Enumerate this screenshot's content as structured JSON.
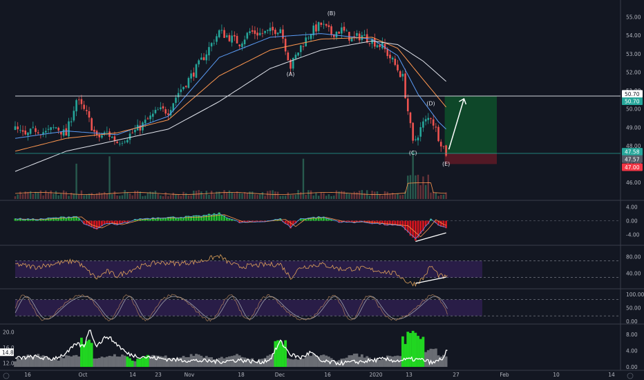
{
  "chart_data": {
    "type": "candlestick",
    "x_ticks": [
      "16",
      "Oct",
      "14",
      "23",
      "Nov",
      "18",
      "Dec",
      "16",
      "2020",
      "13",
      "27",
      "Feb",
      "10",
      "14"
    ],
    "price": {
      "y_ticks": [
        "55.00",
        "54.00",
        "53.00",
        "52.00",
        "51.00",
        "50.00",
        "49.00",
        "48.00",
        "47.00",
        "46.00"
      ],
      "ylim": [
        45.1,
        55.4
      ],
      "series": [
        {
          "t": 0,
          "v": 48.9
        },
        {
          "t": 4,
          "v": 48.5
        },
        {
          "t": 8,
          "v": 48.9
        },
        {
          "t": 12,
          "v": 48.7
        },
        {
          "t": 16,
          "v": 49.0
        },
        {
          "t": 20,
          "v": 48.6
        },
        {
          "t": 24,
          "v": 50.5
        },
        {
          "t": 28,
          "v": 49.7
        },
        {
          "t": 32,
          "v": 48.4
        },
        {
          "t": 36,
          "v": 48.7
        },
        {
          "t": 40,
          "v": 48.2
        },
        {
          "t": 44,
          "v": 48.5
        },
        {
          "t": 48,
          "v": 48.9
        },
        {
          "t": 52,
          "v": 49.4
        },
        {
          "t": 56,
          "v": 49.9
        },
        {
          "t": 60,
          "v": 49.9
        },
        {
          "t": 64,
          "v": 50.9
        },
        {
          "t": 68,
          "v": 51.6
        },
        {
          "t": 72,
          "v": 52.4
        },
        {
          "t": 76,
          "v": 53.3
        },
        {
          "t": 80,
          "v": 54.2
        },
        {
          "t": 84,
          "v": 53.9
        },
        {
          "t": 88,
          "v": 53.6
        },
        {
          "t": 92,
          "v": 54.2
        },
        {
          "t": 96,
          "v": 54.1
        },
        {
          "t": 100,
          "v": 54.2
        },
        {
          "t": 104,
          "v": 54.4
        },
        {
          "t": 108,
          "v": 52.3
        },
        {
          "t": 112,
          "v": 53.4
        },
        {
          "t": 116,
          "v": 54.2
        },
        {
          "t": 120,
          "v": 54.6
        },
        {
          "t": 124,
          "v": 54.1
        },
        {
          "t": 128,
          "v": 54.3
        },
        {
          "t": 132,
          "v": 53.8
        },
        {
          "t": 136,
          "v": 54.0
        },
        {
          "t": 140,
          "v": 53.7
        },
        {
          "t": 144,
          "v": 53.4
        },
        {
          "t": 148,
          "v": 52.6
        },
        {
          "t": 152,
          "v": 51.7
        },
        {
          "t": 156,
          "v": 48.1
        },
        {
          "t": 160,
          "v": 49.2
        },
        {
          "t": 163,
          "v": 49.6
        },
        {
          "t": 166,
          "v": 48.5
        },
        {
          "t": 169,
          "v": 47.6
        }
      ],
      "moving_averages": [
        {
          "color": "#5b9cf6",
          "points": [
            [
              0,
              48.4
            ],
            [
              20,
              48.8
            ],
            [
              40,
              48.6
            ],
            [
              60,
              49.6
            ],
            [
              80,
              52.8
            ],
            [
              100,
              53.9
            ],
            [
              120,
              54.1
            ],
            [
              140,
              53.8
            ],
            [
              150,
              52.9
            ],
            [
              158,
              50.8
            ],
            [
              166,
              49.3
            ],
            [
              169,
              48.9
            ]
          ]
        },
        {
          "color": "#ff9850",
          "points": [
            [
              0,
              47.7
            ],
            [
              20,
              48.4
            ],
            [
              40,
              48.7
            ],
            [
              60,
              49.4
            ],
            [
              80,
              51.8
            ],
            [
              100,
              53.2
            ],
            [
              120,
              53.8
            ],
            [
              140,
              53.9
            ],
            [
              150,
              53.3
            ],
            [
              160,
              51.6
            ],
            [
              169,
              50.1
            ]
          ]
        },
        {
          "color": "#e0e3eb",
          "points": [
            [
              0,
              46.6
            ],
            [
              20,
              47.7
            ],
            [
              40,
              48.3
            ],
            [
              60,
              48.9
            ],
            [
              80,
              50.4
            ],
            [
              100,
              52.2
            ],
            [
              120,
              53.2
            ],
            [
              140,
              53.7
            ],
            [
              150,
              53.5
            ],
            [
              160,
              52.6
            ],
            [
              169,
              51.5
            ]
          ]
        }
      ],
      "horizontal_lines": [
        50.7,
        47.58
      ],
      "target_zone": {
        "top": 50.7,
        "entry": 47.58,
        "stop": 47.0
      },
      "wave_labels": [
        {
          "text": "(A)",
          "t": 108,
          "v": 51.8
        },
        {
          "text": "(B)",
          "t": 124,
          "v": 55.1
        },
        {
          "text": "(C)",
          "t": 156,
          "v": 47.5
        },
        {
          "text": "(D)",
          "t": 163,
          "v": 50.2
        },
        {
          "text": "(E)",
          "t": 169,
          "v": 46.9
        }
      ],
      "price_tags": [
        {
          "text": "50.70",
          "v": 50.82,
          "bg": "#ffffff",
          "fg": "#131722"
        },
        {
          "text": "50.70",
          "v": 50.42,
          "bg": "#26a69a",
          "fg": "#ffffff"
        },
        {
          "text": "47.58",
          "v": 47.67,
          "bg": "#26a69a",
          "fg": "#ffffff"
        },
        {
          "text": "47.57",
          "v": 47.27,
          "bg": "#555a66",
          "fg": "#ffffff"
        },
        {
          "text": "47.00",
          "v": 46.83,
          "bg": "#f23645",
          "fg": "#ffffff"
        }
      ]
    },
    "macd": {
      "y_ticks": [
        "4.00",
        "0.00",
        "-4.00"
      ],
      "ylim": [
        -6.5,
        5.5
      ],
      "histogram": [
        {
          "t": 0,
          "v": 0.6
        },
        {
          "t": 8,
          "v": 0.4
        },
        {
          "t": 16,
          "v": 0.9
        },
        {
          "t": 24,
          "v": 1.4
        },
        {
          "t": 28,
          "v": -1.5
        },
        {
          "t": 32,
          "v": -2.6
        },
        {
          "t": 36,
          "v": -0.8
        },
        {
          "t": 40,
          "v": -1.4
        },
        {
          "t": 48,
          "v": 0.5
        },
        {
          "t": 56,
          "v": 1.0
        },
        {
          "t": 64,
          "v": 1.1
        },
        {
          "t": 72,
          "v": 1.4
        },
        {
          "t": 80,
          "v": 2.2
        },
        {
          "t": 88,
          "v": -0.6
        },
        {
          "t": 96,
          "v": -0.3
        },
        {
          "t": 104,
          "v": 0.5
        },
        {
          "t": 108,
          "v": -2.1
        },
        {
          "t": 112,
          "v": 0.7
        },
        {
          "t": 120,
          "v": 1.2
        },
        {
          "t": 128,
          "v": -0.5
        },
        {
          "t": 136,
          "v": -0.4
        },
        {
          "t": 144,
          "v": -1.1
        },
        {
          "t": 152,
          "v": -1.8
        },
        {
          "t": 155,
          "v": -4.2
        },
        {
          "t": 157,
          "v": -5.8
        },
        {
          "t": 160,
          "v": -3.0
        },
        {
          "t": 163,
          "v": 0.4
        },
        {
          "t": 166,
          "v": -1.3
        },
        {
          "t": 169,
          "v": -2.4
        }
      ],
      "divergence_line": [
        [
          157,
          -6.0
        ],
        [
          169,
          -3.5
        ]
      ]
    },
    "rsi": {
      "y_ticks": [
        "80.00",
        "40.00"
      ],
      "ylim": [
        8,
        104
      ],
      "bands": [
        70,
        30
      ],
      "series": [
        {
          "t": 0,
          "v": 62
        },
        {
          "t": 8,
          "v": 55
        },
        {
          "t": 16,
          "v": 64
        },
        {
          "t": 24,
          "v": 70
        },
        {
          "t": 28,
          "v": 48
        },
        {
          "t": 32,
          "v": 28
        },
        {
          "t": 36,
          "v": 45
        },
        {
          "t": 40,
          "v": 34
        },
        {
          "t": 48,
          "v": 55
        },
        {
          "t": 56,
          "v": 66
        },
        {
          "t": 64,
          "v": 64
        },
        {
          "t": 72,
          "v": 68
        },
        {
          "t": 80,
          "v": 82
        },
        {
          "t": 84,
          "v": 65
        },
        {
          "t": 88,
          "v": 56
        },
        {
          "t": 96,
          "v": 60
        },
        {
          "t": 104,
          "v": 62
        },
        {
          "t": 108,
          "v": 30
        },
        {
          "t": 112,
          "v": 55
        },
        {
          "t": 120,
          "v": 62
        },
        {
          "t": 128,
          "v": 50
        },
        {
          "t": 136,
          "v": 52
        },
        {
          "t": 144,
          "v": 45
        },
        {
          "t": 150,
          "v": 38
        },
        {
          "t": 154,
          "v": 18
        },
        {
          "t": 157,
          "v": 15
        },
        {
          "t": 160,
          "v": 28
        },
        {
          "t": 163,
          "v": 58
        },
        {
          "t": 166,
          "v": 36
        },
        {
          "t": 169,
          "v": 30
        }
      ],
      "divergence_line": [
        [
          157,
          16
        ],
        [
          169,
          31
        ]
      ]
    },
    "stoch": {
      "y_ticks": [
        "100.00",
        "50.00",
        "0.00"
      ],
      "ylim": [
        -5,
        115
      ],
      "bands": [
        80,
        20
      ]
    },
    "atr": {
      "y_ticks_left": [
        "20.0",
        "16.0",
        "12.0"
      ],
      "y_ticks_right": [
        "8.00",
        "4.00",
        "0.00"
      ],
      "current_tag": "14.8",
      "white_line": [
        {
          "t": 0,
          "v": 13.2
        },
        {
          "t": 8,
          "v": 13.6
        },
        {
          "t": 14,
          "v": 13.0
        },
        {
          "t": 20,
          "v": 14.4
        },
        {
          "t": 24,
          "v": 17.0
        },
        {
          "t": 27,
          "v": 16.2
        },
        {
          "t": 29,
          "v": 20.8
        },
        {
          "t": 32,
          "v": 16.5
        },
        {
          "t": 36,
          "v": 19.0
        },
        {
          "t": 40,
          "v": 16.8
        },
        {
          "t": 44,
          "v": 14.4
        },
        {
          "t": 48,
          "v": 13.8
        },
        {
          "t": 56,
          "v": 13.2
        },
        {
          "t": 64,
          "v": 12.8
        },
        {
          "t": 72,
          "v": 12.6
        },
        {
          "t": 80,
          "v": 12.4
        },
        {
          "t": 88,
          "v": 12.8
        },
        {
          "t": 96,
          "v": 12.2
        },
        {
          "t": 100,
          "v": 13.0
        },
        {
          "t": 104,
          "v": 17.6
        },
        {
          "t": 108,
          "v": 14.2
        },
        {
          "t": 112,
          "v": 13.4
        },
        {
          "t": 116,
          "v": 14.8
        },
        {
          "t": 120,
          "v": 12.4
        },
        {
          "t": 128,
          "v": 12.0
        },
        {
          "t": 136,
          "v": 12.4
        },
        {
          "t": 144,
          "v": 13.0
        },
        {
          "t": 150,
          "v": 12.6
        },
        {
          "t": 155,
          "v": 13.0
        },
        {
          "t": 160,
          "v": 12.8
        },
        {
          "t": 164,
          "v": 12.0
        },
        {
          "t": 168,
          "v": 13.4
        },
        {
          "t": 169,
          "v": 14.8
        }
      ]
    }
  }
}
